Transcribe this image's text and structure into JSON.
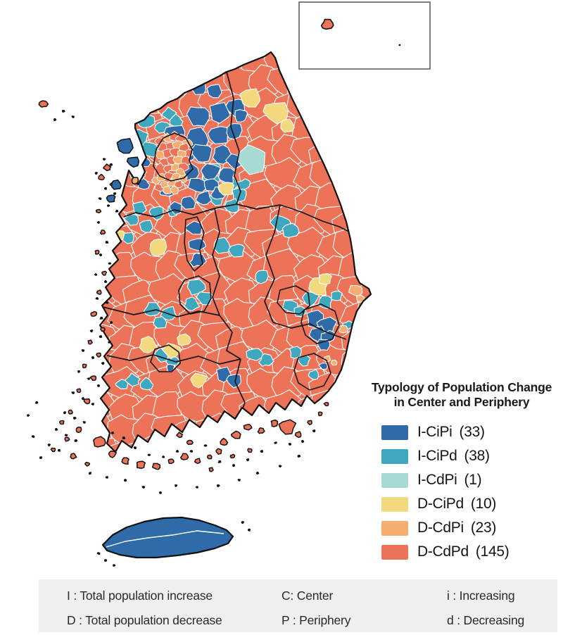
{
  "figure": {
    "title": "Typology of Population Change in Center and Periphery",
    "map_region": "South Korea"
  },
  "legend": {
    "title_line1": "Typology of Population Change",
    "title_line2": "in Center and Periphery",
    "items": [
      {
        "label": "I-CiPi",
        "count": "(33)",
        "value": 33,
        "color": "#2E6BA8"
      },
      {
        "label": "I-CiPd",
        "count": "(38)",
        "value": 38,
        "color": "#3FA8BE"
      },
      {
        "label": "I-CdPi",
        "count": "(1)",
        "value": 1,
        "color": "#A7DAD3"
      },
      {
        "label": "D-CiPd",
        "count": "(10)",
        "value": 10,
        "color": "#F2D97D"
      },
      {
        "label": "D-CdPi",
        "count": "(23)",
        "value": 23,
        "color": "#F6AE70"
      },
      {
        "label": "D-CdPd",
        "count": "(145)",
        "value": 145,
        "color": "#EC7357"
      }
    ]
  },
  "definitions": {
    "rows": [
      {
        "col1": "I : Total population increase",
        "col2": "C: Center",
        "col3": "i : Increasing"
      },
      {
        "col1": "D : Total population decrease",
        "col2": "P : Periphery",
        "col3": "d : Decreasing"
      }
    ]
  },
  "chart_data": {
    "type": "choropleth",
    "title": "Typology of Population Change in Center and Periphery",
    "region": "South Korea",
    "categories": [
      "I-CiPi",
      "I-CiPd",
      "I-CdPi",
      "D-CiPd",
      "D-CdPi",
      "D-CdPd"
    ],
    "values": [
      33,
      38,
      1,
      10,
      23,
      145
    ],
    "colors": [
      "#2E6BA8",
      "#3FA8BE",
      "#A7DAD3",
      "#F2D97D",
      "#F6AE70",
      "#EC7357"
    ],
    "legend_position": "right"
  }
}
